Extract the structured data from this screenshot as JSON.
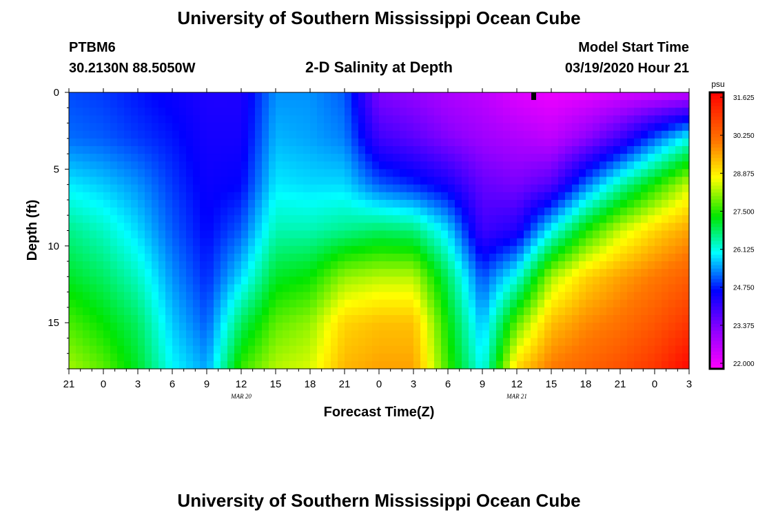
{
  "chart_data": {
    "type": "heatmap",
    "title": "University of Southern Mississippi Ocean Cube",
    "footer_title": "University of Southern Mississippi Ocean Cube",
    "subtitle": "2-D Salinity at Depth",
    "station": "PTBM6",
    "location": "30.2130N 88.5050W",
    "model_start_label": "Model Start Time",
    "model_start_value": "03/19/2020 Hour 21",
    "xlabel": "Forecast Time(Z)",
    "ylabel": "Depth (ft)",
    "x_tick_labels": [
      "21",
      "0",
      "3",
      "6",
      "9",
      "12",
      "15",
      "18",
      "21",
      "0",
      "3",
      "6",
      "9",
      "12",
      "15",
      "18",
      "21",
      "0",
      "3"
    ],
    "x_date_labels": [
      {
        "label": "MAR 20",
        "hour": 15
      },
      {
        "label": "MAR 21",
        "hour": 39
      }
    ],
    "x_range_hours": [
      0,
      54
    ],
    "y_ticks": [
      0,
      5,
      10,
      15
    ],
    "y_range_ft": [
      0,
      18
    ],
    "colorbar": {
      "unit": "psu",
      "range": [
        22.0,
        32.0
      ],
      "ticks": [
        "22.000",
        "23.375",
        "24.750",
        "26.125",
        "27.500",
        "28.875",
        "30.250",
        "31.625"
      ]
    },
    "profile_hours": [
      0,
      3,
      6,
      9,
      12,
      15,
      18,
      21,
      24,
      27,
      30,
      33,
      36,
      39,
      42,
      45,
      48,
      51,
      54
    ],
    "profile_depths_ft": [
      0,
      3,
      6,
      9,
      12,
      15,
      18
    ],
    "salinity_profiles": [
      [
        25.2,
        25.4,
        26.1,
        26.8,
        27.3,
        27.9,
        28.4
      ],
      [
        25.1,
        25.3,
        25.9,
        26.5,
        27.0,
        27.5,
        28.0
      ],
      [
        24.9,
        25.1,
        25.6,
        26.0,
        26.5,
        27.0,
        27.3
      ],
      [
        24.7,
        24.9,
        25.1,
        25.3,
        25.6,
        25.9,
        26.2
      ],
      [
        24.5,
        24.6,
        24.7,
        24.8,
        25.0,
        25.3,
        25.7
      ],
      [
        24.5,
        24.6,
        24.8,
        25.3,
        26.0,
        27.0,
        27.8
      ],
      [
        25.6,
        25.8,
        26.1,
        26.6,
        27.3,
        28.0,
        28.5
      ],
      [
        25.6,
        25.7,
        26.0,
        26.6,
        27.5,
        28.3,
        28.7
      ],
      [
        25.3,
        25.5,
        26.0,
        26.8,
        28.3,
        29.3,
        29.6
      ],
      [
        23.5,
        24.2,
        25.3,
        27.0,
        28.5,
        29.5,
        29.8
      ],
      [
        23.3,
        23.9,
        25.0,
        26.9,
        28.5,
        29.5,
        29.8
      ],
      [
        23.0,
        23.5,
        24.6,
        26.0,
        27.0,
        27.5,
        27.8
      ],
      [
        22.8,
        23.2,
        23.8,
        24.2,
        25.2,
        25.8,
        26.2
      ],
      [
        22.4,
        23.0,
        23.6,
        24.5,
        26.3,
        28.0,
        29.3
      ],
      [
        22.2,
        22.8,
        24.0,
        26.2,
        28.4,
        29.5,
        30.2
      ],
      [
        22.3,
        23.4,
        25.4,
        27.6,
        29.3,
        30.0,
        30.5
      ],
      [
        22.5,
        24.2,
        26.6,
        28.6,
        29.8,
        30.3,
        30.8
      ],
      [
        22.6,
        25.3,
        27.6,
        29.3,
        30.2,
        30.7,
        31.2
      ],
      [
        22.7,
        26.3,
        28.6,
        29.8,
        30.6,
        31.2,
        31.9
      ]
    ]
  }
}
